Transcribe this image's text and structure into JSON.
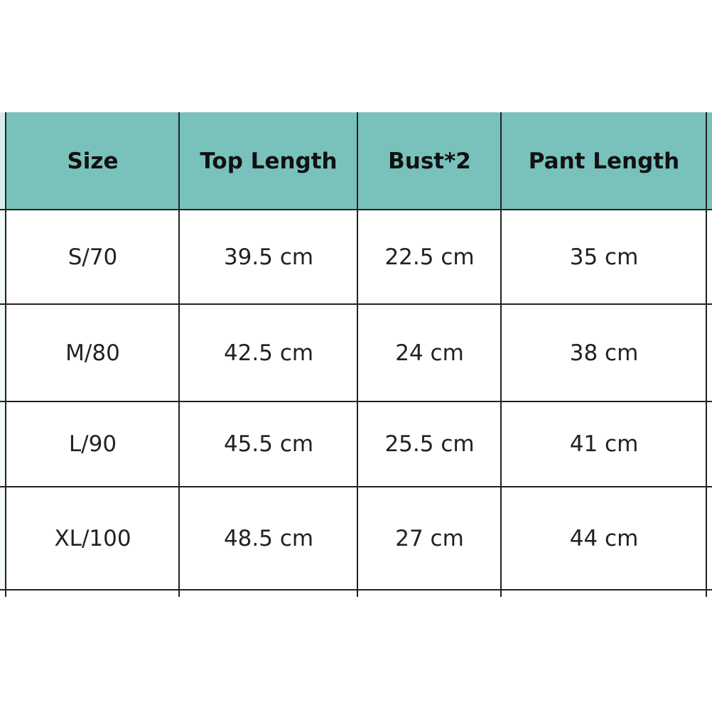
{
  "header_color": "#79C2BC",
  "table": {
    "headers": [
      "Size",
      "Top Length",
      "Bust*2",
      "Pant Length"
    ],
    "rows": [
      [
        "S/70",
        "39.5 cm",
        "22.5 cm",
        "35 cm"
      ],
      [
        "M/80",
        "42.5 cm",
        "24 cm",
        "38 cm"
      ],
      [
        "L/90",
        "45.5 cm",
        "25.5 cm",
        "41 cm"
      ],
      [
        "XL/100",
        "48.5 cm",
        "27 cm",
        "44 cm"
      ]
    ]
  }
}
